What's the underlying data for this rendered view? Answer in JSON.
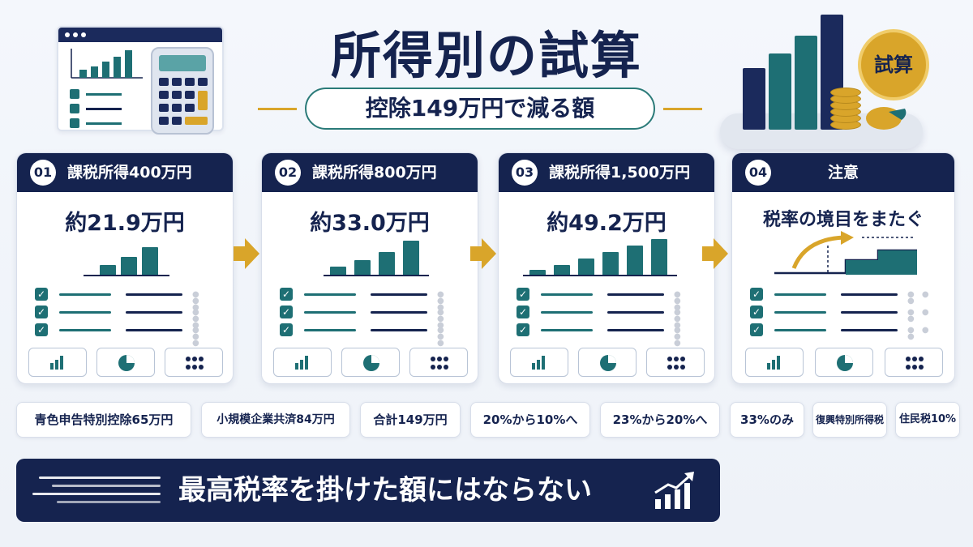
{
  "header": {
    "title": "所得別の試算",
    "subtitle": "控除149万円で減る額",
    "badge": "試算"
  },
  "cards": [
    {
      "num": "01",
      "title": "課税所得400万円",
      "value": "約21.9万円"
    },
    {
      "num": "02",
      "title": "課税所得800万円",
      "value": "約33.0万円"
    },
    {
      "num": "03",
      "title": "課税所得1,500万円",
      "value": "約49.2万円"
    },
    {
      "num": "04",
      "title": "注意",
      "value": "税率の境目をまたぐ"
    }
  ],
  "tags": [
    "青色申告特別控除65万円",
    "小規模企業共済84万円",
    "合計149万円",
    "20%から10%へ",
    "23%から20%へ",
    "33%のみ",
    "復興特別所得税",
    "住民税10%"
  ],
  "footer": {
    "text": "最高税率を掛けた額にはならない"
  },
  "colors": {
    "navy": "#15234f",
    "teal": "#1e6f74",
    "gold": "#d9a52a"
  }
}
